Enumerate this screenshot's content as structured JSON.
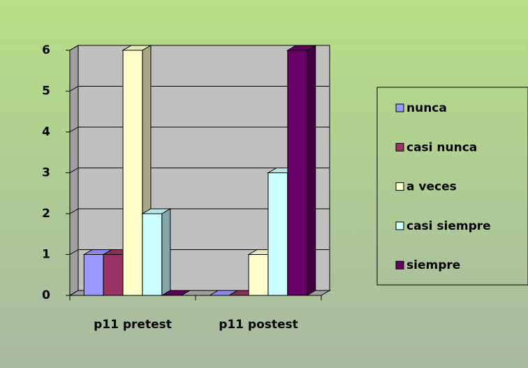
{
  "chart_data": {
    "type": "bar3d",
    "categories": [
      "p11 pretest",
      "p11 postest"
    ],
    "series": [
      {
        "name": "nunca",
        "color": "#9999ff",
        "values": [
          1,
          0
        ]
      },
      {
        "name": "casi nunca",
        "color": "#993366",
        "values": [
          1,
          0
        ]
      },
      {
        "name": "a veces",
        "color": "#ffffcc",
        "values": [
          6,
          1
        ]
      },
      {
        "name": "casi siempre",
        "color": "#ccffff",
        "values": [
          2,
          3
        ]
      },
      {
        "name": "siempre",
        "color": "#660066",
        "values": [
          0,
          6
        ]
      }
    ],
    "ylim": [
      0,
      6
    ],
    "yticks": [
      0,
      1,
      2,
      3,
      4,
      5,
      6
    ],
    "grid": true,
    "legend": "right"
  }
}
